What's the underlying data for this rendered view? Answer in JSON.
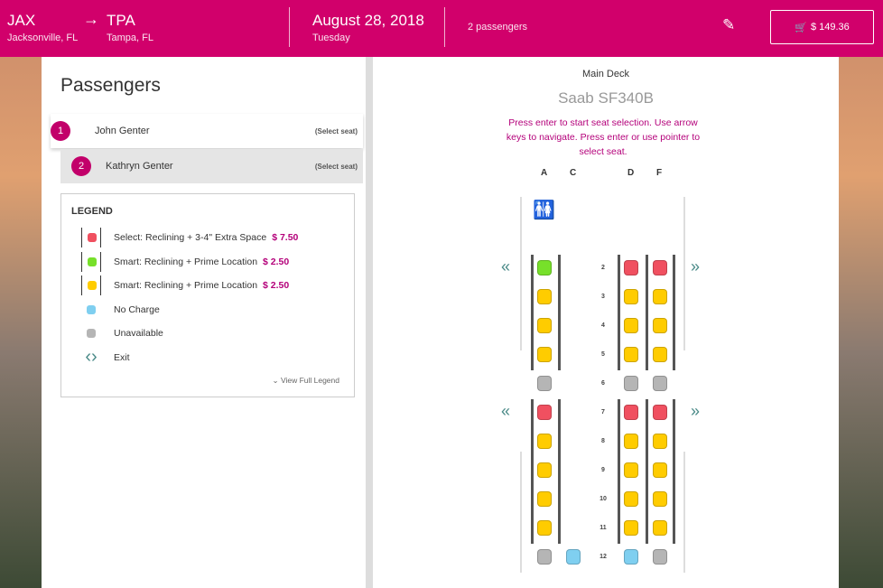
{
  "header": {
    "origin_code": "JAX",
    "origin_city": "Jacksonville, FL",
    "dest_code": "TPA",
    "dest_city": "Tampa, FL",
    "date": "August 28, 2018",
    "weekday": "Tuesday",
    "passengers": "2 passengers",
    "cart_total": "$ 149.36",
    "icons": {
      "arrow": "arrow-right-icon",
      "edit": "pencil-icon",
      "cart": "cart-icon"
    }
  },
  "passengers_panel": {
    "title": "Passengers",
    "items": [
      {
        "num": "1",
        "name": "John Genter",
        "action": "(Select seat)"
      },
      {
        "num": "2",
        "name": "Kathryn Genter",
        "action": "(Select seat)"
      }
    ]
  },
  "legend": {
    "title": "LEGEND",
    "items": [
      {
        "label": "Select: Reclining + 3-4\" Extra Space",
        "price": "$ 7.50",
        "color": "#f05060"
      },
      {
        "label": "Smart: Reclining + Prime Location",
        "price": "$ 2.50",
        "color": "#77e02a"
      },
      {
        "label": "Smart: Reclining + Prime Location",
        "price": "$ 2.50",
        "color": "#ffcc00"
      },
      {
        "label": "No Charge",
        "price": "",
        "color": "#7fcff0"
      },
      {
        "label": "Unavailable",
        "price": "",
        "color": "#b5b5b5"
      },
      {
        "label": "Exit",
        "price": "",
        "color": ""
      }
    ],
    "view_full": "View Full Legend"
  },
  "seatmap": {
    "deck": "Main Deck",
    "aircraft": "Saab SF340B",
    "instructions": "Press enter to start seat selection. Use arrow keys to navigate. Press enter or use pointer to select seat.",
    "columns": [
      "A",
      "C",
      "D",
      "F"
    ],
    "colors": {
      "red": "#f05060",
      "green": "#77e02a",
      "yellow": "#ffcc00",
      "blue": "#7fcff0",
      "gray": "#b5b5b5"
    },
    "exit_rows": [
      "2",
      "7"
    ],
    "rows": [
      {
        "row": "2",
        "seats": [
          "green",
          null,
          "red",
          "red"
        ]
      },
      {
        "row": "3",
        "seats": [
          "yellow",
          null,
          "yellow",
          "yellow"
        ]
      },
      {
        "row": "4",
        "seats": [
          "yellow",
          null,
          "yellow",
          "yellow"
        ]
      },
      {
        "row": "5",
        "seats": [
          "yellow",
          null,
          "yellow",
          "yellow"
        ]
      },
      {
        "row": "6",
        "seats": [
          "gray",
          null,
          "gray",
          "gray"
        ]
      },
      {
        "row": "7",
        "seats": [
          "red",
          null,
          "red",
          "red"
        ]
      },
      {
        "row": "8",
        "seats": [
          "yellow",
          null,
          "yellow",
          "yellow"
        ]
      },
      {
        "row": "9",
        "seats": [
          "yellow",
          null,
          "yellow",
          "yellow"
        ]
      },
      {
        "row": "10",
        "seats": [
          "yellow",
          null,
          "yellow",
          "yellow"
        ]
      },
      {
        "row": "11",
        "seats": [
          "yellow",
          null,
          "yellow",
          "yellow"
        ]
      },
      {
        "row": "12",
        "seats": [
          "gray",
          "blue",
          "blue",
          "gray"
        ]
      }
    ]
  }
}
